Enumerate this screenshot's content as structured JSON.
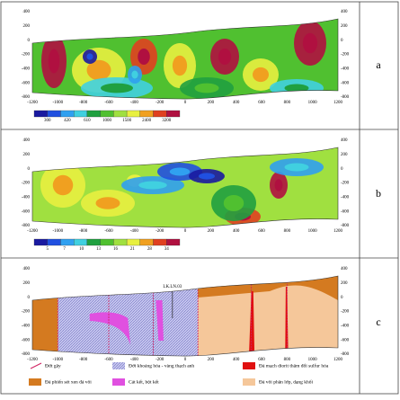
{
  "x_ticks": [
    -1200,
    -1000,
    -800,
    -600,
    -400,
    -200,
    0,
    200,
    400,
    600,
    800,
    1000,
    1200
  ],
  "y_ticks": [
    400,
    200,
    0,
    -200,
    -400,
    -600,
    -800
  ],
  "panels": [
    {
      "label": "a",
      "colorbar": {
        "ticks": [
          300,
          420,
          610,
          1000,
          1500,
          2400,
          3200
        ],
        "colors": [
          "#1a1aa0",
          "#2050e0",
          "#30a0f0",
          "#40d0e0",
          "#20a040",
          "#50c030",
          "#a0e040",
          "#e8f040",
          "#f0a020",
          "#e04020",
          "#b01040"
        ]
      }
    },
    {
      "label": "b",
      "colorbar": {
        "ticks": [
          5,
          7,
          10,
          13,
          16,
          21,
          28,
          34
        ],
        "colors": [
          "#1a1aa0",
          "#2050e0",
          "#30a0f0",
          "#40d0e0",
          "#20a040",
          "#50c030",
          "#a0e040",
          "#e8f040",
          "#f0a020",
          "#e04020",
          "#b01040"
        ]
      }
    },
    {
      "label": "c",
      "borehole": "LK.LN.03",
      "legend": [
        "Đứt gãy",
        "Đới khoáng hóa - vàng thạch anh",
        "Đá mạch diorit thâm đổi sulfur hóa",
        "Đá phiến sét xen đá vôi",
        "Cát kết, bột kết",
        "Đá vôi phân lớp, dạng khối"
      ]
    }
  ]
}
